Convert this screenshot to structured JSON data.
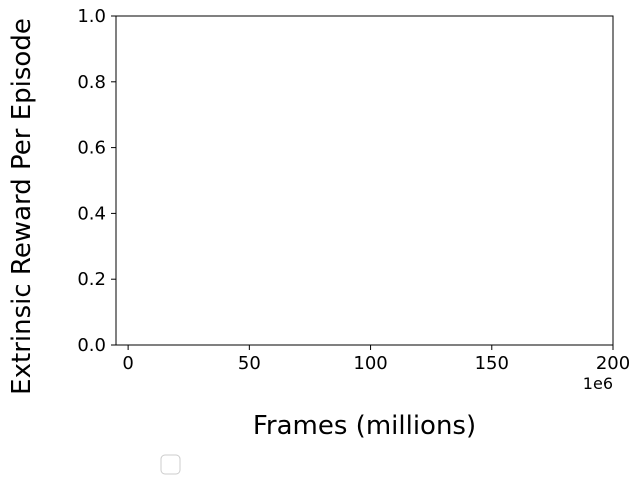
{
  "chart_data": {
    "type": "line",
    "title": "",
    "xlabel": "Frames (millions)",
    "ylabel": "Extrinsic Reward Per Episode",
    "x_offset_label": "1e6",
    "xlim": [
      -5,
      200
    ],
    "ylim": [
      0,
      1
    ],
    "xticks": [
      0,
      50,
      100,
      150,
      200
    ],
    "xtick_labels": [
      "0",
      "50",
      "100",
      "150",
      "200"
    ],
    "yticks": [
      0,
      0.2,
      0.4,
      0.6,
      0.8,
      1.0
    ],
    "ytick_labels": [
      "0.0",
      "0.2",
      "0.4",
      "0.6",
      "0.8",
      "1.0"
    ],
    "grid": false,
    "series": [],
    "legend": {
      "placement": "bottom",
      "entries": []
    }
  }
}
